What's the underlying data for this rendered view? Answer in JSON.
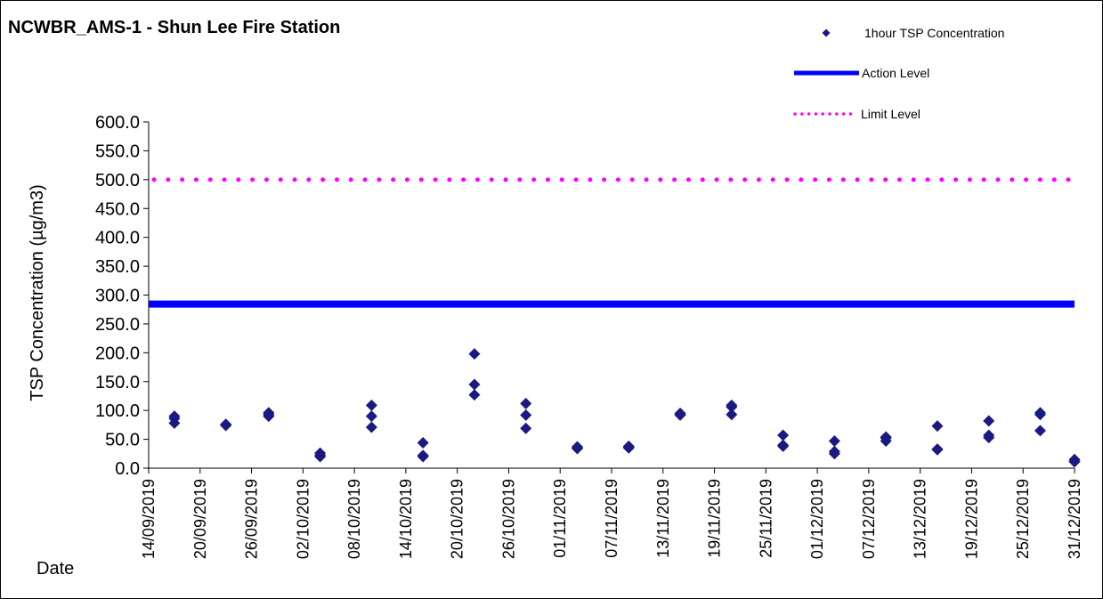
{
  "chart_data": {
    "type": "scatter",
    "title": "NCWBR_AMS-1 - Shun Lee Fire Station",
    "ylabel": "TSP Concentration (µg/m3)",
    "xlabel": "Date",
    "ylim": [
      0,
      600
    ],
    "y_ticks": [
      "0.0",
      "50.0",
      "100.0",
      "150.0",
      "200.0",
      "250.0",
      "300.0",
      "350.0",
      "400.0",
      "450.0",
      "500.0",
      "550.0",
      "600.0"
    ],
    "x_range": [
      "14/09/2019",
      "31/12/2019"
    ],
    "x_ticks": [
      "14/09/2019",
      "20/09/2019",
      "26/09/2019",
      "02/10/2019",
      "08/10/2019",
      "14/10/2019",
      "20/10/2019",
      "26/10/2019",
      "01/11/2019",
      "07/11/2019",
      "13/11/2019",
      "19/11/2019",
      "25/11/2019",
      "01/12/2019",
      "07/12/2019",
      "13/12/2019",
      "19/12/2019",
      "25/12/2019",
      "31/12/2019"
    ],
    "legend_position": "top-right",
    "grid": false,
    "series": [
      {
        "name": "1hour TSP Concentration",
        "kind": "markers",
        "marker": "diamond",
        "color": "#1a1a80",
        "points": [
          {
            "x": "17/09/2019",
            "y": 90
          },
          {
            "x": "17/09/2019",
            "y": 86
          },
          {
            "x": "17/09/2019",
            "y": 78
          },
          {
            "x": "23/09/2019",
            "y": 76
          },
          {
            "x": "23/09/2019",
            "y": 74
          },
          {
            "x": "23/09/2019",
            "y": 75
          },
          {
            "x": "28/09/2019",
            "y": 96
          },
          {
            "x": "28/09/2019",
            "y": 93
          },
          {
            "x": "28/09/2019",
            "y": 90
          },
          {
            "x": "04/10/2019",
            "y": 26
          },
          {
            "x": "04/10/2019",
            "y": 22
          },
          {
            "x": "04/10/2019",
            "y": 20
          },
          {
            "x": "10/10/2019",
            "y": 109
          },
          {
            "x": "10/10/2019",
            "y": 90
          },
          {
            "x": "10/10/2019",
            "y": 71
          },
          {
            "x": "16/10/2019",
            "y": 44
          },
          {
            "x": "16/10/2019",
            "y": 22
          },
          {
            "x": "16/10/2019",
            "y": 20
          },
          {
            "x": "22/10/2019",
            "y": 198
          },
          {
            "x": "22/10/2019",
            "y": 145
          },
          {
            "x": "22/10/2019",
            "y": 127
          },
          {
            "x": "28/10/2019",
            "y": 112
          },
          {
            "x": "28/10/2019",
            "y": 92
          },
          {
            "x": "28/10/2019",
            "y": 69
          },
          {
            "x": "03/11/2019",
            "y": 37
          },
          {
            "x": "03/11/2019",
            "y": 35
          },
          {
            "x": "03/11/2019",
            "y": 34
          },
          {
            "x": "09/11/2019",
            "y": 38
          },
          {
            "x": "09/11/2019",
            "y": 36
          },
          {
            "x": "09/11/2019",
            "y": 35
          },
          {
            "x": "15/11/2019",
            "y": 95
          },
          {
            "x": "15/11/2019",
            "y": 93
          },
          {
            "x": "15/11/2019",
            "y": 92
          },
          {
            "x": "21/11/2019",
            "y": 109
          },
          {
            "x": "21/11/2019",
            "y": 106
          },
          {
            "x": "21/11/2019",
            "y": 93
          },
          {
            "x": "27/11/2019",
            "y": 57
          },
          {
            "x": "27/11/2019",
            "y": 40
          },
          {
            "x": "27/11/2019",
            "y": 38
          },
          {
            "x": "03/12/2019",
            "y": 47
          },
          {
            "x": "03/12/2019",
            "y": 29
          },
          {
            "x": "03/12/2019",
            "y": 25
          },
          {
            "x": "09/12/2019",
            "y": 54
          },
          {
            "x": "09/12/2019",
            "y": 52
          },
          {
            "x": "09/12/2019",
            "y": 47
          },
          {
            "x": "15/12/2019",
            "y": 73
          },
          {
            "x": "15/12/2019",
            "y": 33
          },
          {
            "x": "15/12/2019",
            "y": 32
          },
          {
            "x": "21/12/2019",
            "y": 82
          },
          {
            "x": "21/12/2019",
            "y": 57
          },
          {
            "x": "21/12/2019",
            "y": 53
          },
          {
            "x": "27/12/2019",
            "y": 96
          },
          {
            "x": "27/12/2019",
            "y": 93
          },
          {
            "x": "27/12/2019",
            "y": 65
          },
          {
            "x": "31/12/2019",
            "y": 15
          },
          {
            "x": "31/12/2019",
            "y": 12
          },
          {
            "x": "31/12/2019",
            "y": 11
          }
        ]
      },
      {
        "name": "Action Level",
        "kind": "line",
        "style": "solid",
        "color": "#0000ff",
        "y": 284.4
      },
      {
        "name": "Limit Level",
        "kind": "line",
        "style": "dotted",
        "color": "#ff00ff",
        "y": 500
      }
    ]
  }
}
